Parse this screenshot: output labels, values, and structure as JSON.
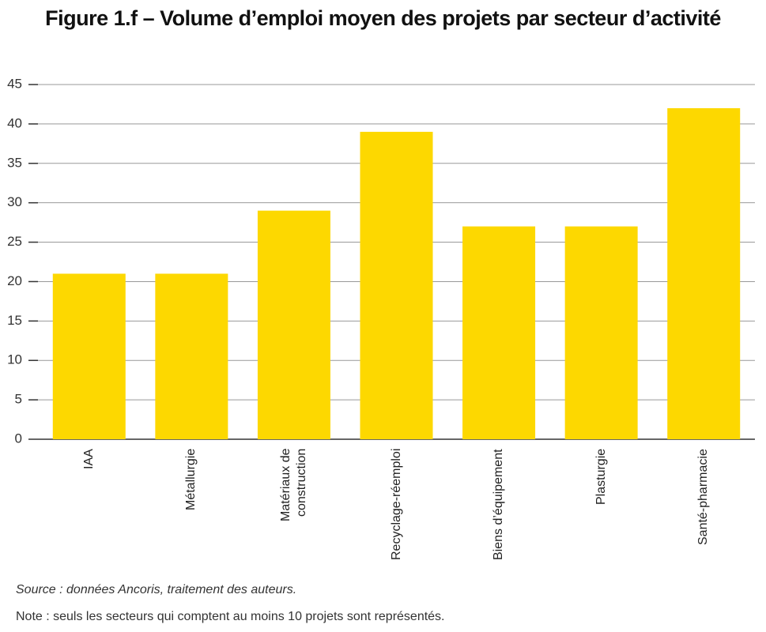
{
  "chart_data": {
    "type": "bar",
    "title": "Figure 1.f – Volume d’emploi moyen des projets par secteur d’activité",
    "categories": [
      "IAA",
      "Métallurgie",
      "Matériaux de construction",
      "Recyclage-réemploi",
      "Biens d’équipement",
      "Plasturgie",
      "Santé-pharmacie"
    ],
    "values": [
      21,
      21,
      29,
      39,
      27,
      27,
      42
    ],
    "color": "#fdd800",
    "ylim": [
      0,
      45
    ],
    "yticks": [
      0,
      5,
      10,
      15,
      20,
      25,
      30,
      35,
      40,
      45
    ],
    "grid": true,
    "source": "Source : données Ancoris, traitement des auteurs.",
    "note": "Note : seuls les secteurs qui comptent au moins 10 projets sont représentés."
  }
}
